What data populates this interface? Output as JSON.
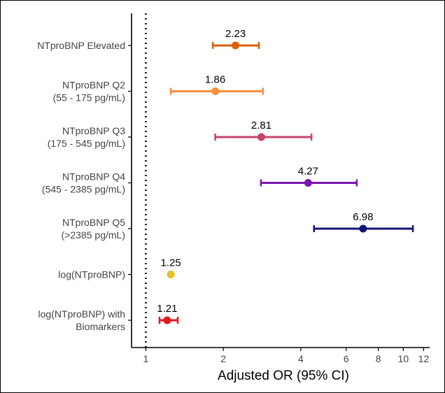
{
  "chart_data": {
    "type": "forest",
    "title": "",
    "xlabel": "Adjusted OR (95% CI)",
    "ylabel": "",
    "x_scale": "log",
    "xlim": [
      0.88,
      12.5
    ],
    "x_ticks": [
      1,
      2,
      4,
      6,
      8,
      10,
      12
    ],
    "x_tick_labels": [
      "1",
      "2",
      "4",
      "6",
      "8",
      "10",
      "12"
    ],
    "reference_line": 1,
    "rows": [
      {
        "label": [
          "NTproBNP Elevated"
        ],
        "or": 2.23,
        "or_label": "2.23",
        "ci": [
          1.82,
          2.75
        ],
        "color": "#d95f02"
      },
      {
        "label": [
          "NTproBNP Q2",
          "(55 - 175 pg/mL)"
        ],
        "or": 1.86,
        "or_label": "1.86",
        "ci": [
          1.25,
          2.85
        ],
        "color": "#fd8d3c"
      },
      {
        "label": [
          "NTproBNP Q3",
          "(175 - 545 pg/mL)"
        ],
        "or": 2.81,
        "or_label": "2.81",
        "ci": [
          1.86,
          4.4
        ],
        "color": "#c2456a"
      },
      {
        "label": [
          "NTproBNP Q4",
          "(545 - 2385 pg/mL)"
        ],
        "or": 4.27,
        "or_label": "4.27",
        "ci": [
          2.8,
          6.6
        ],
        "color": "#7b16b0"
      },
      {
        "label": [
          "NTproBNP Q5",
          "(>2385 pg/mL)"
        ],
        "or": 6.98,
        "or_label": "6.98",
        "ci": [
          4.5,
          10.9
        ],
        "color": "#13137a"
      },
      {
        "label": [
          "log(NTproBNP)"
        ],
        "or": 1.25,
        "or_label": "1.25",
        "ci": [
          1.23,
          1.27
        ],
        "color": "#e6c229"
      },
      {
        "label": [
          "log(NTproBNP) with",
          "Biomarkers"
        ],
        "or": 1.21,
        "or_label": "1.21",
        "ci": [
          1.13,
          1.33
        ],
        "color": "#e31a1c"
      }
    ]
  }
}
